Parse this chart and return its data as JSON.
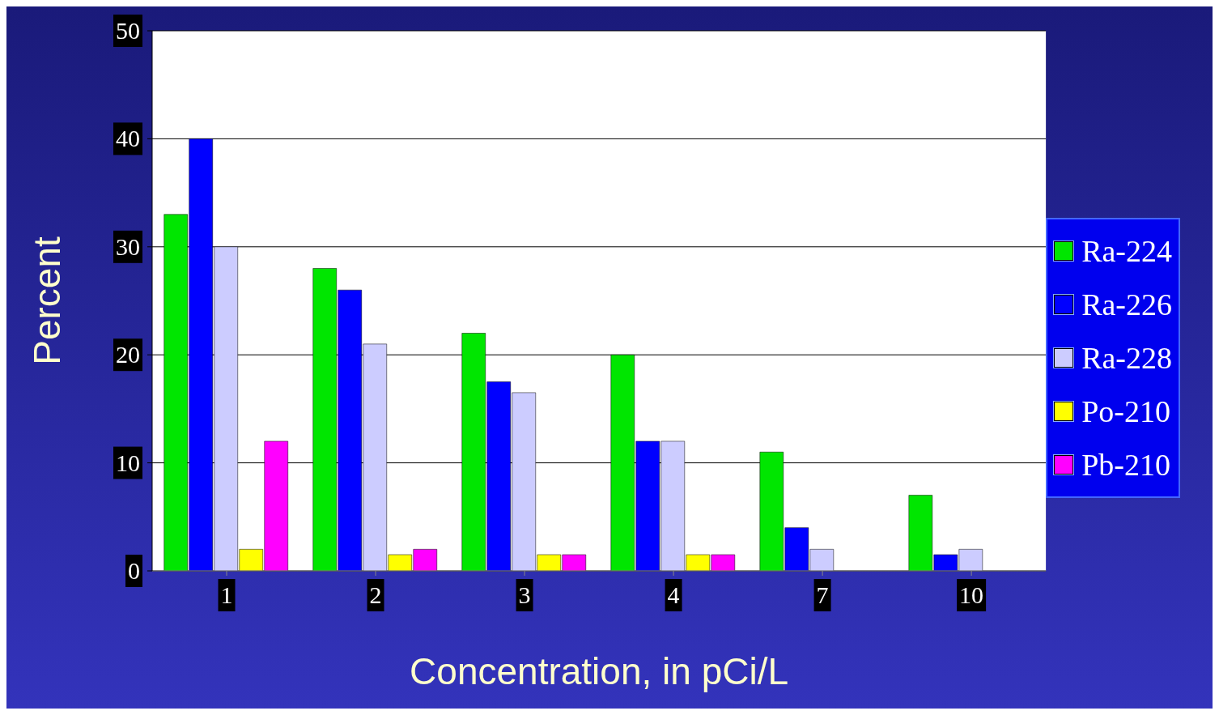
{
  "chart_data": {
    "type": "bar",
    "xlabel": "Concentration, in pCi/L",
    "ylabel": "Percent",
    "categories": [
      "1",
      "2",
      "3",
      "4",
      "7",
      "10"
    ],
    "series": [
      {
        "name": "Ra-224",
        "color": "#00e600",
        "values": [
          33,
          28,
          22,
          20,
          11,
          7
        ]
      },
      {
        "name": "Ra-226",
        "color": "#0000ff",
        "values": [
          40,
          26,
          17.5,
          12,
          4,
          1.5
        ]
      },
      {
        "name": "Ra-228",
        "color": "#ccccff",
        "values": [
          30,
          21,
          16.5,
          12,
          2,
          2
        ]
      },
      {
        "name": "Po-210",
        "color": "#ffff00",
        "values": [
          2,
          1.5,
          1.5,
          1.5,
          0,
          0
        ]
      },
      {
        "name": "Pb-210",
        "color": "#ff00ff",
        "values": [
          12,
          2,
          1.5,
          1.5,
          0,
          0
        ]
      }
    ],
    "ylim": [
      0,
      50
    ],
    "yticks": [
      0,
      10,
      20,
      30,
      40,
      50
    ],
    "grid": "y",
    "legend": "right"
  }
}
